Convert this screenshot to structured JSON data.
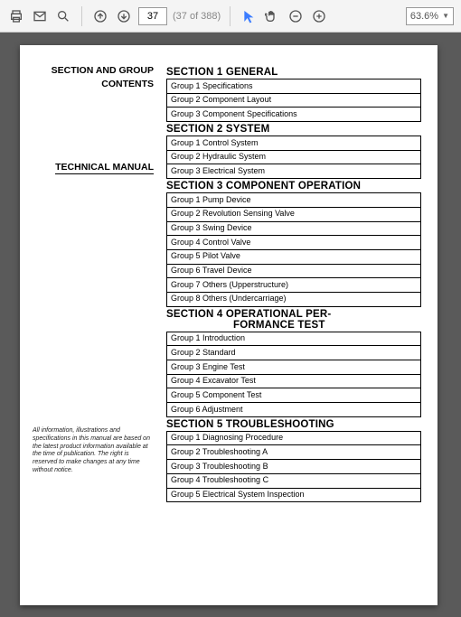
{
  "toolbar": {
    "page_current": "37",
    "page_total": "(37 of 388)",
    "zoom": "63.6%"
  },
  "left": {
    "heading1": "SECTION AND GROUP",
    "heading2": "CONTENTS",
    "tech_manual": "TECHNICAL MANUAL",
    "disclaimer": "All information, illustrations and specifications in this manual are based on the latest product information available at the time of publication. The right is reserved to make changes at any time without notice."
  },
  "sections": [
    {
      "title": "SECTION 1 GENERAL",
      "groups": [
        "Group 1 Specifications",
        "Group 2 Component Layout",
        "Group 3 Component Specifications"
      ]
    },
    {
      "title": "SECTION 2 SYSTEM",
      "groups": [
        "Group 1 Control System",
        "Group 2 Hydraulic System",
        "Group 3 Electrical System"
      ]
    },
    {
      "title": "SECTION 3 COMPONENT OPERATION",
      "groups": [
        "Group 1 Pump Device",
        "Group 2 Revolution Sensing Valve",
        "Group 3 Swing Device",
        "Group 4 Control Valve",
        "Group 5 Pilot Valve",
        "Group 6 Travel Device",
        "Group 7 Others (Upperstructure)",
        "Group 8 Others (Undercarriage)"
      ]
    },
    {
      "title": "SECTION 4  OPERATIONAL PER-\nFORMANCE TEST",
      "groups": [
        "Group 1 Introduction",
        "Group 2 Standard",
        "Group 3 Engine Test",
        "Group 4 Excavator Test",
        "Group 5 Component Test",
        "Group 6 Adjustment"
      ]
    },
    {
      "title": "SECTION 5 TROUBLESHOOTING",
      "groups": [
        "Group 1 Diagnosing Procedure",
        "Group 2 Troubleshooting A",
        "Group 3 Troubleshooting B",
        "Group 4 Troubleshooting C",
        "Group 5 Electrical System Inspection"
      ]
    }
  ]
}
